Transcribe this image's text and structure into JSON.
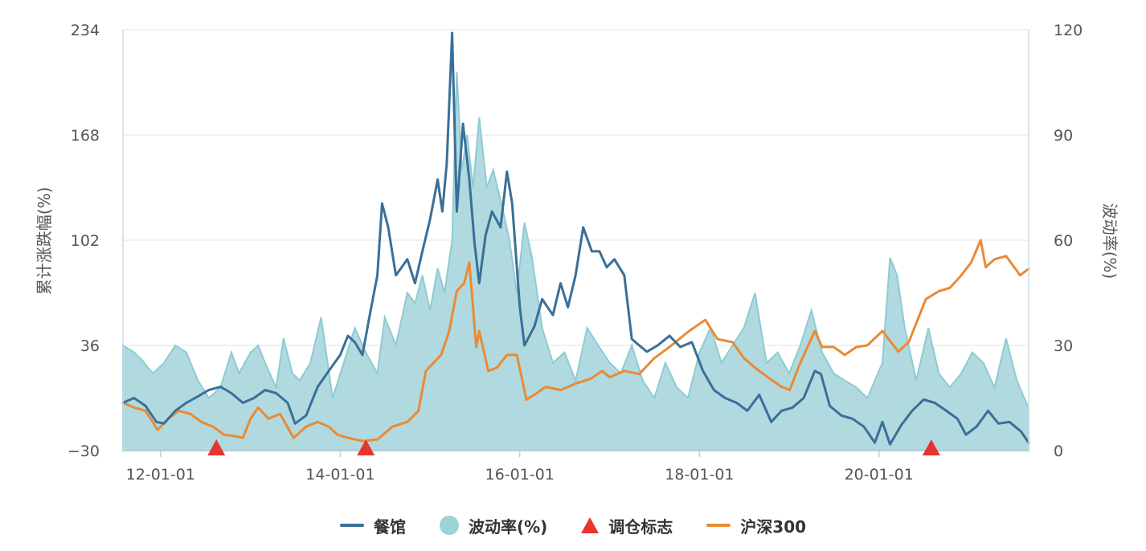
{
  "legend": {
    "restaurant": "餐馆",
    "volatility": "波动率(%)",
    "rebalance": "调仓标志",
    "csi300": "沪深300"
  },
  "colors": {
    "restaurant": "#3a6f98",
    "volatility_fill": "#a7d6dc",
    "volatility_stroke": "#8ecbd3",
    "csi300": "#ea8a34",
    "rebalance": "#e8342e"
  },
  "chart_data": {
    "type": "line",
    "title": "",
    "ylabel_left": "累计涨跌幅(%)",
    "ylabel_right": "波动率(%)",
    "ylim_left": [
      -30,
      234
    ],
    "ylim_right": [
      0,
      120
    ],
    "yticks_left": [
      "234",
      "168",
      "102",
      "36",
      "−30"
    ],
    "yticks_right": [
      "120",
      "90",
      "60",
      "30",
      "0"
    ],
    "xlim": [
      "2011-08-01",
      "2021-09-01"
    ],
    "xticks": [
      "12-01-01",
      "14-01-01",
      "16-01-01",
      "18-01-01",
      "20-01-01"
    ],
    "legend_position": "bottom",
    "grid": true,
    "rebalance_dates": [
      "2012-08-15",
      "2014-04-15",
      "2020-08-01"
    ],
    "series": [
      {
        "name": "餐馆",
        "axis": "left",
        "points": [
          [
            "2011-08-01",
            0
          ],
          [
            "2011-09-15",
            3
          ],
          [
            "2011-11-01",
            -2
          ],
          [
            "2011-12-15",
            -12
          ],
          [
            "2012-01-15",
            -13
          ],
          [
            "2012-03-01",
            -5
          ],
          [
            "2012-04-15",
            0
          ],
          [
            "2012-06-01",
            4
          ],
          [
            "2012-07-15",
            8
          ],
          [
            "2012-09-01",
            10
          ],
          [
            "2012-10-15",
            6
          ],
          [
            "2012-12-01",
            0
          ],
          [
            "2013-01-15",
            3
          ],
          [
            "2013-03-01",
            8
          ],
          [
            "2013-04-15",
            6
          ],
          [
            "2013-06-01",
            0
          ],
          [
            "2013-07-01",
            -13
          ],
          [
            "2013-08-15",
            -8
          ],
          [
            "2013-10-01",
            10
          ],
          [
            "2013-11-15",
            20
          ],
          [
            "2014-01-01",
            30
          ],
          [
            "2014-02-01",
            42
          ],
          [
            "2014-03-01",
            38
          ],
          [
            "2014-04-01",
            30
          ],
          [
            "2014-05-01",
            55
          ],
          [
            "2014-06-01",
            80
          ],
          [
            "2014-06-20",
            125
          ],
          [
            "2014-07-15",
            110
          ],
          [
            "2014-08-15",
            80
          ],
          [
            "2014-10-01",
            90
          ],
          [
            "2014-11-01",
            75
          ],
          [
            "2014-12-01",
            95
          ],
          [
            "2015-01-01",
            115
          ],
          [
            "2015-02-01",
            140
          ],
          [
            "2015-02-20",
            120
          ],
          [
            "2015-03-10",
            150
          ],
          [
            "2015-04-01",
            232
          ],
          [
            "2015-04-20",
            120
          ],
          [
            "2015-05-15",
            175
          ],
          [
            "2015-06-10",
            140
          ],
          [
            "2015-07-01",
            100
          ],
          [
            "2015-07-20",
            75
          ],
          [
            "2015-08-15",
            105
          ],
          [
            "2015-09-10",
            120
          ],
          [
            "2015-10-15",
            110
          ],
          [
            "2015-11-10",
            145
          ],
          [
            "2015-12-01",
            125
          ],
          [
            "2016-01-01",
            60
          ],
          [
            "2016-01-20",
            36
          ],
          [
            "2016-03-01",
            48
          ],
          [
            "2016-04-01",
            65
          ],
          [
            "2016-05-15",
            55
          ],
          [
            "2016-06-15",
            75
          ],
          [
            "2016-07-15",
            60
          ],
          [
            "2016-08-15",
            80
          ],
          [
            "2016-09-15",
            110
          ],
          [
            "2016-10-20",
            95
          ],
          [
            "2016-11-20",
            95
          ],
          [
            "2016-12-20",
            85
          ],
          [
            "2017-01-20",
            90
          ],
          [
            "2017-03-01",
            80
          ],
          [
            "2017-04-01",
            40
          ],
          [
            "2017-05-01",
            36
          ],
          [
            "2017-06-01",
            32
          ],
          [
            "2017-07-15",
            36
          ],
          [
            "2017-09-01",
            42
          ],
          [
            "2017-10-15",
            35
          ],
          [
            "2017-12-01",
            38
          ],
          [
            "2018-01-15",
            20
          ],
          [
            "2018-03-01",
            8
          ],
          [
            "2018-04-15",
            3
          ],
          [
            "2018-06-01",
            0
          ],
          [
            "2018-07-15",
            -5
          ],
          [
            "2018-09-01",
            5
          ],
          [
            "2018-10-20",
            -12
          ],
          [
            "2018-12-01",
            -5
          ],
          [
            "2019-01-15",
            -3
          ],
          [
            "2019-03-01",
            3
          ],
          [
            "2019-04-15",
            20
          ],
          [
            "2019-05-10",
            18
          ],
          [
            "2019-06-15",
            -2
          ],
          [
            "2019-08-01",
            -8
          ],
          [
            "2019-09-15",
            -10
          ],
          [
            "2019-11-01",
            -15
          ],
          [
            "2019-12-15",
            -25
          ],
          [
            "2020-01-15",
            -12
          ],
          [
            "2020-02-15",
            -26
          ],
          [
            "2020-04-01",
            -14
          ],
          [
            "2020-05-15",
            -5
          ],
          [
            "2020-07-01",
            2
          ],
          [
            "2020-08-15",
            0
          ],
          [
            "2020-10-01",
            -5
          ],
          [
            "2020-11-15",
            -10
          ],
          [
            "2020-12-20",
            -20
          ],
          [
            "2021-02-01",
            -15
          ],
          [
            "2021-03-20",
            -5
          ],
          [
            "2021-05-01",
            -13
          ],
          [
            "2021-06-15",
            -12
          ],
          [
            "2021-08-01",
            -18
          ],
          [
            "2021-09-01",
            -25
          ]
        ]
      },
      {
        "name": "沪深300",
        "axis": "left",
        "points": [
          [
            "2011-08-01",
            0
          ],
          [
            "2011-09-15",
            -3
          ],
          [
            "2011-11-01",
            -5
          ],
          [
            "2011-12-20",
            -17
          ],
          [
            "2012-02-01",
            -10
          ],
          [
            "2012-03-15",
            -5
          ],
          [
            "2012-05-01",
            -7
          ],
          [
            "2012-06-15",
            -12
          ],
          [
            "2012-08-01",
            -15
          ],
          [
            "2012-09-15",
            -20
          ],
          [
            "2012-11-01",
            -21
          ],
          [
            "2012-12-01",
            -22
          ],
          [
            "2013-01-01",
            -10
          ],
          [
            "2013-02-01",
            -3
          ],
          [
            "2013-03-15",
            -10
          ],
          [
            "2013-05-01",
            -7
          ],
          [
            "2013-06-25",
            -22
          ],
          [
            "2013-08-15",
            -15
          ],
          [
            "2013-10-01",
            -12
          ],
          [
            "2013-11-15",
            -15
          ],
          [
            "2013-12-20",
            -20
          ],
          [
            "2014-02-01",
            -22
          ],
          [
            "2014-04-01",
            -24
          ],
          [
            "2014-06-01",
            -23
          ],
          [
            "2014-08-01",
            -15
          ],
          [
            "2014-10-01",
            -12
          ],
          [
            "2014-11-15",
            -5
          ],
          [
            "2014-12-15",
            20
          ],
          [
            "2015-01-15",
            25
          ],
          [
            "2015-02-15",
            30
          ],
          [
            "2015-03-20",
            45
          ],
          [
            "2015-04-20",
            70
          ],
          [
            "2015-05-20",
            75
          ],
          [
            "2015-06-10",
            88
          ],
          [
            "2015-07-08",
            35
          ],
          [
            "2015-07-20",
            45
          ],
          [
            "2015-08-26",
            20
          ],
          [
            "2015-09-30",
            22
          ],
          [
            "2015-11-10",
            30
          ],
          [
            "2015-12-20",
            30
          ],
          [
            "2016-01-28",
            2
          ],
          [
            "2016-03-01",
            5
          ],
          [
            "2016-04-15",
            10
          ],
          [
            "2016-06-15",
            8
          ],
          [
            "2016-08-15",
            12
          ],
          [
            "2016-10-15",
            15
          ],
          [
            "2016-12-01",
            20
          ],
          [
            "2017-01-01",
            16
          ],
          [
            "2017-03-01",
            20
          ],
          [
            "2017-05-01",
            18
          ],
          [
            "2017-07-01",
            28
          ],
          [
            "2017-09-01",
            35
          ],
          [
            "2017-11-20",
            45
          ],
          [
            "2018-01-25",
            52
          ],
          [
            "2018-03-15",
            40
          ],
          [
            "2018-05-15",
            38
          ],
          [
            "2018-07-01",
            28
          ],
          [
            "2018-08-15",
            22
          ],
          [
            "2018-10-15",
            15
          ],
          [
            "2018-12-01",
            10
          ],
          [
            "2019-01-03",
            8
          ],
          [
            "2019-02-15",
            25
          ],
          [
            "2019-04-15",
            45
          ],
          [
            "2019-05-15",
            35
          ],
          [
            "2019-07-01",
            35
          ],
          [
            "2019-08-15",
            30
          ],
          [
            "2019-10-01",
            35
          ],
          [
            "2019-11-15",
            36
          ],
          [
            "2020-01-15",
            45
          ],
          [
            "2020-03-20",
            32
          ],
          [
            "2020-05-01",
            38
          ],
          [
            "2020-07-10",
            65
          ],
          [
            "2020-09-01",
            70
          ],
          [
            "2020-10-15",
            72
          ],
          [
            "2020-12-01",
            80
          ],
          [
            "2021-01-10",
            88
          ],
          [
            "2021-02-18",
            102
          ],
          [
            "2021-03-10",
            85
          ],
          [
            "2021-04-15",
            90
          ],
          [
            "2021-06-01",
            92
          ],
          [
            "2021-07-28",
            80
          ],
          [
            "2021-09-01",
            84
          ]
        ]
      },
      {
        "name": "波动率(%)",
        "axis": "right",
        "points": [
          [
            "2011-08-01",
            30
          ],
          [
            "2011-09-15",
            28
          ],
          [
            "2011-10-15",
            26
          ],
          [
            "2011-12-01",
            22
          ],
          [
            "2012-01-15",
            25
          ],
          [
            "2012-03-01",
            30
          ],
          [
            "2012-04-15",
            28
          ],
          [
            "2012-06-01",
            20
          ],
          [
            "2012-07-15",
            15
          ],
          [
            "2012-09-01",
            18
          ],
          [
            "2012-10-15",
            28
          ],
          [
            "2012-11-15",
            22
          ],
          [
            "2013-01-01",
            28
          ],
          [
            "2013-02-01",
            30
          ],
          [
            "2013-03-01",
            25
          ],
          [
            "2013-04-15",
            18
          ],
          [
            "2013-05-15",
            32
          ],
          [
            "2013-06-20",
            22
          ],
          [
            "2013-07-20",
            20
          ],
          [
            "2013-09-01",
            25
          ],
          [
            "2013-10-15",
            38
          ],
          [
            "2013-12-01",
            15
          ],
          [
            "2014-01-15",
            25
          ],
          [
            "2014-03-01",
            35
          ],
          [
            "2014-04-15",
            28
          ],
          [
            "2014-06-01",
            22
          ],
          [
            "2014-07-01",
            38
          ],
          [
            "2014-08-15",
            30
          ],
          [
            "2014-10-01",
            45
          ],
          [
            "2014-11-01",
            42
          ],
          [
            "2014-12-01",
            50
          ],
          [
            "2015-01-01",
            40
          ],
          [
            "2015-02-01",
            52
          ],
          [
            "2015-03-01",
            45
          ],
          [
            "2015-04-01",
            60
          ],
          [
            "2015-04-20",
            108
          ],
          [
            "2015-05-10",
            80
          ],
          [
            "2015-06-01",
            90
          ],
          [
            "2015-06-25",
            75
          ],
          [
            "2015-07-20",
            95
          ],
          [
            "2015-08-20",
            75
          ],
          [
            "2015-09-15",
            80
          ],
          [
            "2015-10-20",
            70
          ],
          [
            "2015-11-20",
            60
          ],
          [
            "2015-12-20",
            45
          ],
          [
            "2016-01-20",
            65
          ],
          [
            "2016-02-20",
            55
          ],
          [
            "2016-04-01",
            35
          ],
          [
            "2016-05-15",
            25
          ],
          [
            "2016-07-01",
            28
          ],
          [
            "2016-08-15",
            20
          ],
          [
            "2016-10-01",
            35
          ],
          [
            "2016-11-15",
            30
          ],
          [
            "2017-01-01",
            25
          ],
          [
            "2017-02-15",
            22
          ],
          [
            "2017-04-01",
            30
          ],
          [
            "2017-05-15",
            20
          ],
          [
            "2017-07-01",
            15
          ],
          [
            "2017-08-15",
            25
          ],
          [
            "2017-10-01",
            18
          ],
          [
            "2017-11-15",
            15
          ],
          [
            "2018-01-01",
            28
          ],
          [
            "2018-02-15",
            35
          ],
          [
            "2018-04-01",
            25
          ],
          [
            "2018-05-15",
            30
          ],
          [
            "2018-07-01",
            35
          ],
          [
            "2018-08-15",
            45
          ],
          [
            "2018-10-01",
            25
          ],
          [
            "2018-11-15",
            28
          ],
          [
            "2019-01-01",
            22
          ],
          [
            "2019-02-15",
            30
          ],
          [
            "2019-04-01",
            40
          ],
          [
            "2019-05-15",
            28
          ],
          [
            "2019-07-01",
            22
          ],
          [
            "2019-08-15",
            20
          ],
          [
            "2019-10-01",
            18
          ],
          [
            "2019-11-15",
            15
          ],
          [
            "2020-01-15",
            25
          ],
          [
            "2020-02-15",
            55
          ],
          [
            "2020-03-15",
            50
          ],
          [
            "2020-04-15",
            35
          ],
          [
            "2020-06-01",
            20
          ],
          [
            "2020-07-20",
            35
          ],
          [
            "2020-09-01",
            22
          ],
          [
            "2020-10-15",
            18
          ],
          [
            "2020-12-01",
            22
          ],
          [
            "2021-01-15",
            28
          ],
          [
            "2021-03-01",
            25
          ],
          [
            "2021-04-15",
            18
          ],
          [
            "2021-06-01",
            32
          ],
          [
            "2021-07-15",
            20
          ],
          [
            "2021-09-01",
            12
          ]
        ]
      }
    ]
  }
}
